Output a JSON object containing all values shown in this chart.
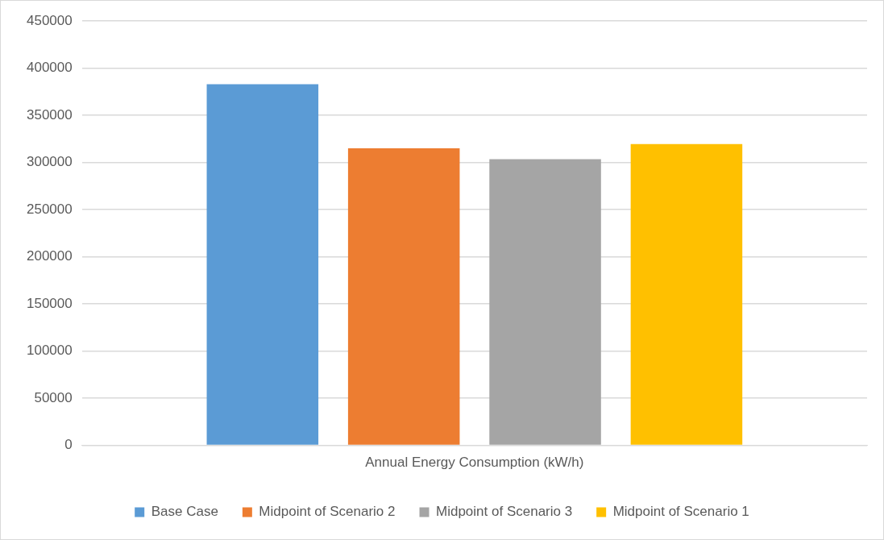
{
  "chart_data": {
    "type": "bar",
    "categories": [
      "Annual Energy Consumption (kW/h)"
    ],
    "series": [
      {
        "name": "Base Case",
        "color": "#5b9bd5",
        "values": [
          383000
        ]
      },
      {
        "name": "Midpoint of Scenario 2",
        "color": "#ed7d31",
        "values": [
          315000
        ]
      },
      {
        "name": "Midpoint of Scenario 3",
        "color": "#a5a5a5",
        "values": [
          303500
        ]
      },
      {
        "name": "Midpoint of Scenario 1",
        "color": "#ffc000",
        "values": [
          319500
        ]
      }
    ],
    "ylim": [
      0,
      450000
    ],
    "yticks": [
      0,
      50000,
      100000,
      150000,
      200000,
      250000,
      300000,
      350000,
      400000,
      450000
    ],
    "grid": "y",
    "legend": "bottom"
  }
}
